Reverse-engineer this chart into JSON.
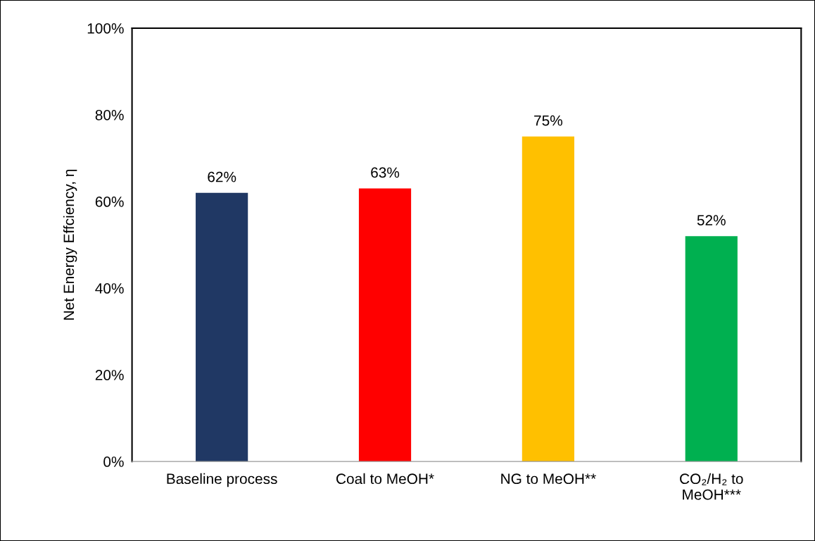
{
  "chart_data": {
    "type": "bar",
    "ylabel": "Net Energy Effciency, η",
    "categories": [
      "Baseline process",
      "Coal to MeOH*",
      "NG to MeOH**",
      "CO₂/H₂ to\nMeOH***"
    ],
    "values": [
      62,
      63,
      75,
      52
    ],
    "value_labels": [
      "62%",
      "63%",
      "75%",
      "52%"
    ],
    "colors": [
      "#203864",
      "#ff0000",
      "#ffc000",
      "#00b050"
    ],
    "ylim": [
      0,
      100
    ],
    "yticks": [
      {
        "value": 0,
        "label": "0%"
      },
      {
        "value": 20,
        "label": "20%"
      },
      {
        "value": 40,
        "label": "40%"
      },
      {
        "value": 60,
        "label": "60%"
      },
      {
        "value": 80,
        "label": "80%"
      },
      {
        "value": 100,
        "label": "100%"
      }
    ],
    "grid": false,
    "legend": false
  }
}
